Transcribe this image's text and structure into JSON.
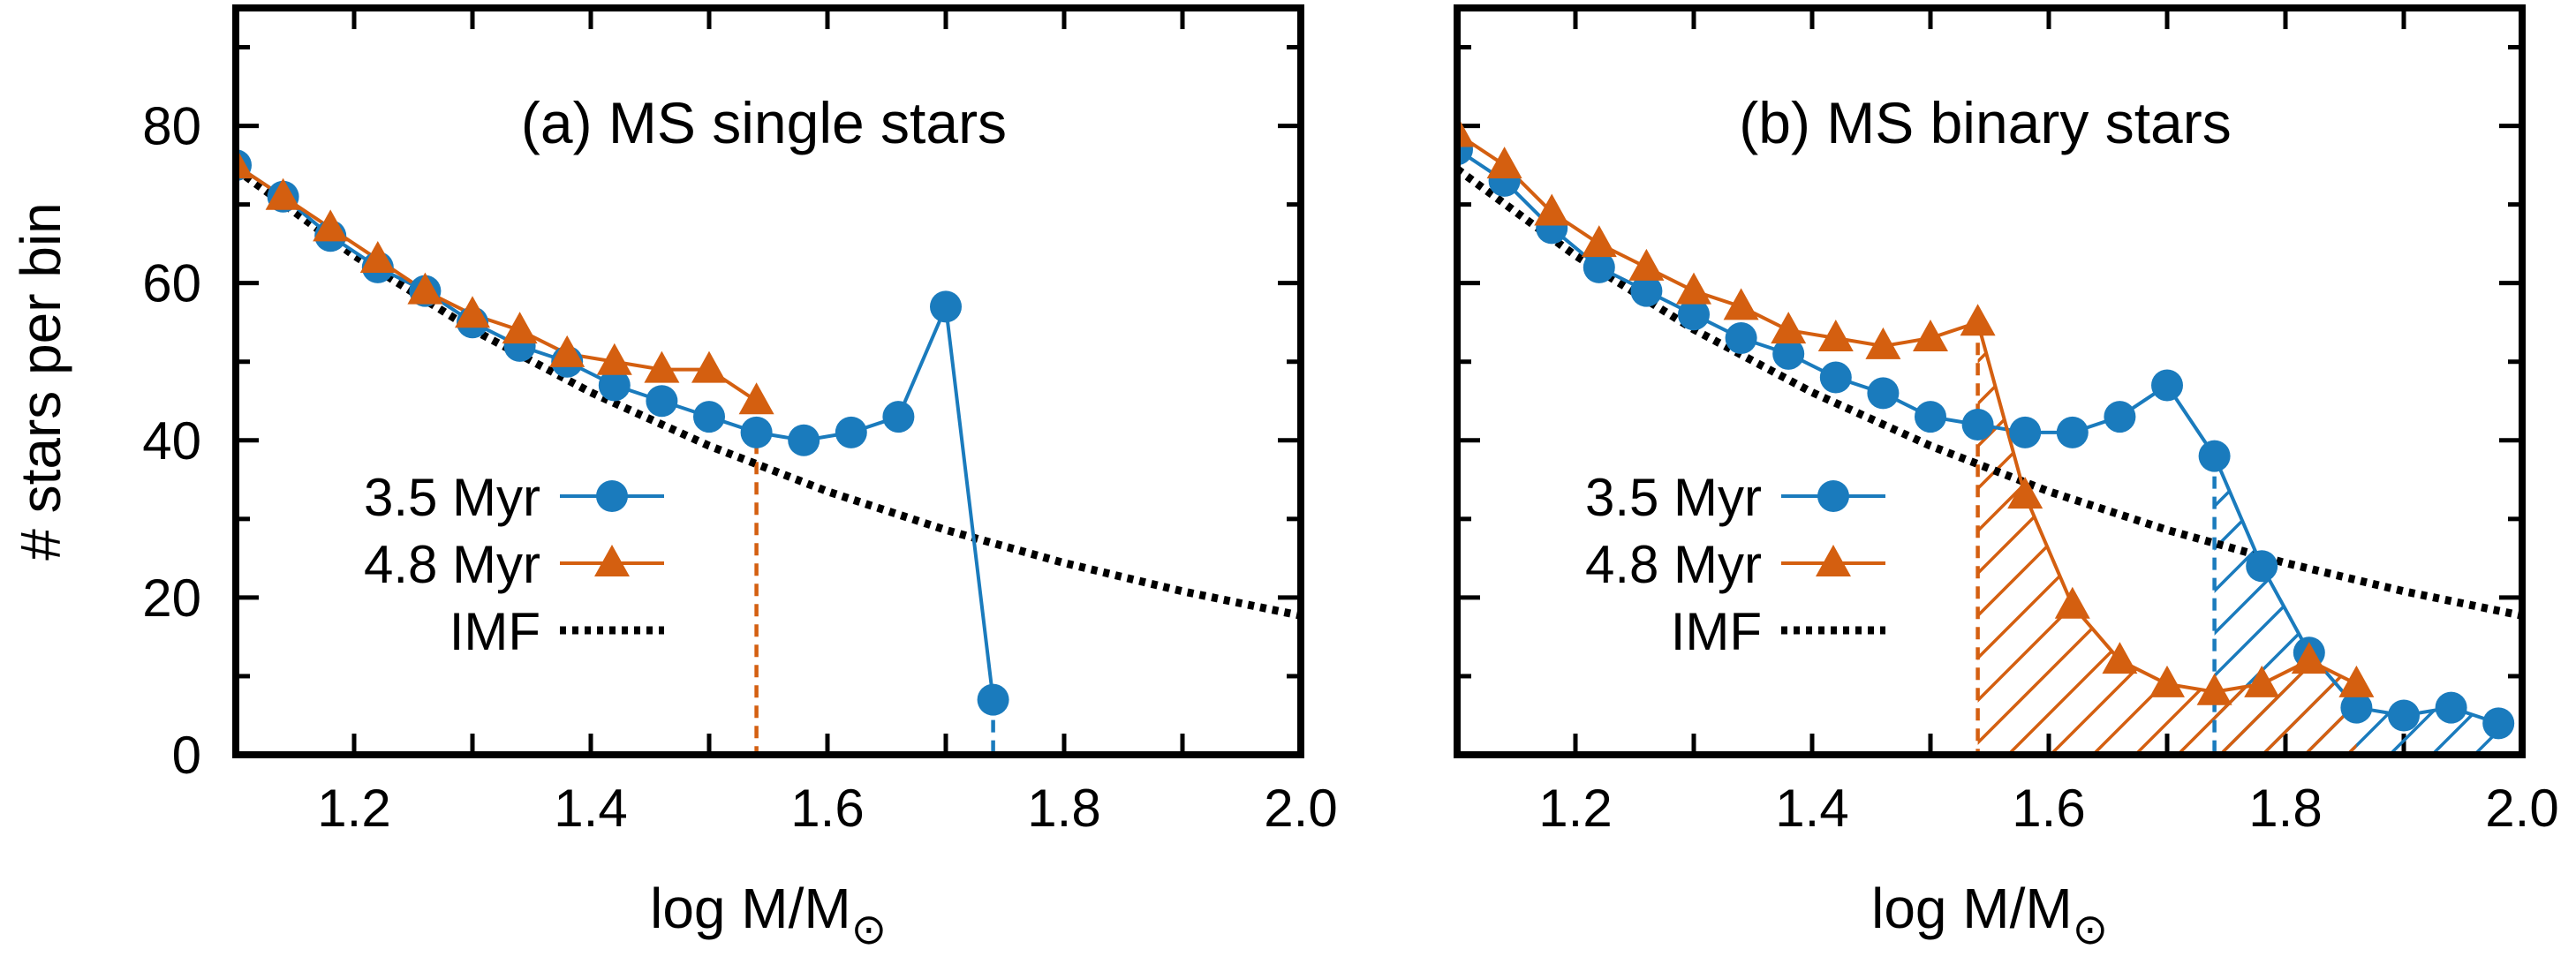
{
  "ylabel": "# stars per bin",
  "xlabel_prefix": "log M/M",
  "xlabel_sub": "⊙",
  "colors": {
    "blue": "#1a7bbd",
    "orange": "#d45f10",
    "imf": "#000000"
  },
  "legend": {
    "a": "3.5 Myr",
    "b": "4.8 Myr",
    "c": "IMF"
  },
  "chart_data": [
    {
      "type": "line",
      "title": "(a) MS single stars",
      "xlabel": "log M/M⊙",
      "ylabel": "# stars per bin",
      "xlim": [
        1.1,
        2.0
      ],
      "ylim": [
        0,
        95
      ],
      "xticks": [
        "1.2",
        "1.4",
        "1.6",
        "1.8",
        "2.0"
      ],
      "yticks": [
        "0",
        "20",
        "40",
        "60",
        "80"
      ],
      "series": [
        {
          "name": "3.5 Myr",
          "marker": "circle",
          "color": "#1a7bbd",
          "x": [
            1.1,
            1.14,
            1.18,
            1.22,
            1.26,
            1.3,
            1.34,
            1.38,
            1.42,
            1.46,
            1.5,
            1.54,
            1.58,
            1.62,
            1.66,
            1.7,
            1.74
          ],
          "y": [
            75,
            71,
            66,
            62,
            59,
            55,
            52,
            50,
            47,
            45,
            43,
            41,
            40,
            41,
            43,
            57,
            7
          ],
          "cutoff": 1.74
        },
        {
          "name": "4.8 Myr",
          "marker": "triangle",
          "color": "#d45f10",
          "x": [
            1.1,
            1.14,
            1.18,
            1.22,
            1.26,
            1.3,
            1.34,
            1.38,
            1.42,
            1.46,
            1.5,
            1.54
          ],
          "y": [
            75,
            71,
            67,
            63,
            59,
            56,
            54,
            51,
            50,
            49,
            49,
            45
          ],
          "cutoff": 1.54
        },
        {
          "name": "IMF",
          "style": "dotted",
          "color": "#000000",
          "x": [
            1.1,
            1.2,
            1.3,
            1.4,
            1.5,
            1.6,
            1.7,
            1.8,
            1.9,
            2.0
          ],
          "y": [
            74.5,
            63.5,
            54.1,
            46.1,
            39.3,
            33.5,
            28.6,
            24.4,
            20.8,
            17.7
          ]
        }
      ]
    },
    {
      "type": "line",
      "title": "(b) MS binary stars",
      "xlabel": "log M/M⊙",
      "xlim": [
        1.1,
        2.0
      ],
      "ylim": [
        0,
        95
      ],
      "xticks": [
        "1.2",
        "1.4",
        "1.6",
        "1.8",
        "2.0"
      ],
      "series": [
        {
          "name": "3.5 Myr",
          "marker": "circle",
          "color": "#1a7bbd",
          "x": [
            1.1,
            1.14,
            1.18,
            1.22,
            1.26,
            1.3,
            1.34,
            1.38,
            1.42,
            1.46,
            1.5,
            1.54,
            1.58,
            1.62,
            1.66,
            1.7,
            1.74,
            1.78,
            1.82,
            1.86,
            1.9,
            1.94,
            1.98
          ],
          "y": [
            77,
            73,
            67,
            62,
            59,
            56,
            53,
            51,
            48,
            46,
            43,
            42,
            41,
            41,
            43,
            47,
            38,
            24,
            13,
            6,
            5,
            6,
            4
          ],
          "cutoff": 1.74,
          "hatch_from": 1.74
        },
        {
          "name": "4.8 Myr",
          "marker": "triangle",
          "color": "#d45f10",
          "x": [
            1.1,
            1.14,
            1.18,
            1.22,
            1.26,
            1.3,
            1.34,
            1.38,
            1.42,
            1.46,
            1.5,
            1.54,
            1.58,
            1.62,
            1.66,
            1.7,
            1.74,
            1.78,
            1.82,
            1.86
          ],
          "y": [
            79,
            75,
            69,
            65,
            62,
            59,
            57,
            54,
            53,
            52,
            53,
            55,
            33,
            19,
            12,
            9,
            8,
            9,
            12,
            9
          ],
          "cutoff": 1.54,
          "hatch_from": 1.54
        },
        {
          "name": "IMF",
          "style": "dotted",
          "color": "#000000",
          "x": [
            1.1,
            1.2,
            1.3,
            1.4,
            1.5,
            1.6,
            1.7,
            1.8,
            1.9,
            2.0
          ],
          "y": [
            74.5,
            63.5,
            54.1,
            46.1,
            39.3,
            33.5,
            28.6,
            24.4,
            20.8,
            17.7
          ]
        }
      ]
    }
  ]
}
